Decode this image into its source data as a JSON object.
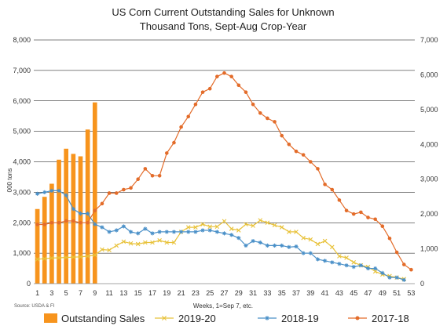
{
  "chart_data": {
    "type": "bar+line",
    "title": "US Corn Current Outstanding Sales for Unknown",
    "subtitle": "Thousand Tons, Sept-Aug Crop-Year",
    "ylabel": "000 tons",
    "xlabel": "Weeks, 1=Sep 7, etc.",
    "source": "Source: USDA & FI",
    "ylim_left": [
      0,
      8000
    ],
    "ylim_right": [
      0,
      7000
    ],
    "yticks_left": [
      "0",
      "1,000",
      "2,000",
      "3,000",
      "4,000",
      "5,000",
      "6,000",
      "7,000",
      "8,000"
    ],
    "yticks_right": [
      "0",
      "1,000",
      "2,000",
      "3,000",
      "4,000",
      "5,000",
      "6,000",
      "7,000"
    ],
    "x_ticks": [
      "1",
      "3",
      "5",
      "7",
      "9",
      "11",
      "13",
      "15",
      "17",
      "19",
      "21",
      "23",
      "25",
      "27",
      "29",
      "31",
      "33",
      "35",
      "37",
      "39",
      "41",
      "43",
      "45",
      "47",
      "49",
      "51",
      "53"
    ],
    "grid": true,
    "legend_position": "bottom",
    "bar_series": {
      "name": "Outstanding Sales",
      "color": "#f7941d",
      "axis": "left",
      "weeks": [
        1,
        2,
        3,
        4,
        5,
        6,
        7,
        8,
        9
      ],
      "values": [
        2450,
        2850,
        3280,
        4070,
        4430,
        4260,
        4180,
        5060,
        5950
      ]
    },
    "line_series": [
      {
        "name": "2019-20",
        "color": "#e8c23a",
        "marker": "x",
        "axis": "left",
        "weeks": [
          1,
          2,
          3,
          4,
          5,
          6,
          7,
          8,
          9,
          10,
          11,
          12,
          13,
          14,
          15,
          16,
          17,
          18,
          19,
          20,
          21,
          22,
          23,
          24,
          25,
          26,
          27,
          28,
          29,
          30,
          31,
          32,
          33,
          34,
          35,
          36,
          37,
          38,
          39,
          40,
          41,
          42,
          43,
          44,
          45,
          46,
          47,
          48,
          49,
          50,
          51,
          52
        ],
        "values": [
          800,
          820,
          840,
          850,
          860,
          870,
          880,
          900,
          940,
          1120,
          1100,
          1250,
          1380,
          1320,
          1300,
          1350,
          1350,
          1420,
          1350,
          1350,
          1700,
          1850,
          1850,
          1950,
          1870,
          1870,
          2050,
          1800,
          1750,
          1950,
          1900,
          2080,
          2000,
          1920,
          1850,
          1700,
          1700,
          1500,
          1450,
          1300,
          1400,
          1200,
          900,
          850,
          700,
          600,
          550,
          400,
          300,
          250,
          200,
          150
        ]
      },
      {
        "name": "2018-19",
        "color": "#4a90c8",
        "marker": "star",
        "axis": "left",
        "weeks": [
          1,
          2,
          3,
          4,
          5,
          6,
          7,
          8,
          9,
          10,
          11,
          12,
          13,
          14,
          15,
          16,
          17,
          18,
          19,
          20,
          21,
          22,
          23,
          24,
          25,
          26,
          27,
          28,
          29,
          30,
          31,
          32,
          33,
          34,
          35,
          36,
          37,
          38,
          39,
          40,
          41,
          42,
          43,
          44,
          45,
          46,
          47,
          48,
          49,
          50,
          51,
          52
        ],
        "values": [
          2950,
          3000,
          3050,
          3050,
          2900,
          2450,
          2300,
          2300,
          1950,
          1850,
          1700,
          1750,
          1880,
          1700,
          1650,
          1800,
          1650,
          1700,
          1700,
          1700,
          1700,
          1700,
          1700,
          1750,
          1750,
          1700,
          1650,
          1600,
          1500,
          1250,
          1400,
          1350,
          1250,
          1250,
          1250,
          1200,
          1220,
          1000,
          1000,
          800,
          750,
          700,
          650,
          600,
          550,
          600,
          500,
          500,
          350,
          200,
          200,
          120
        ]
      },
      {
        "name": "2017-18",
        "color": "#e36c2a",
        "marker": "circle",
        "axis": "right",
        "weeks": [
          1,
          2,
          3,
          4,
          5,
          6,
          7,
          8,
          9,
          10,
          11,
          12,
          13,
          14,
          15,
          16,
          17,
          18,
          19,
          20,
          21,
          22,
          23,
          24,
          25,
          26,
          27,
          28,
          29,
          30,
          31,
          32,
          33,
          34,
          35,
          36,
          37,
          38,
          39,
          40,
          41,
          42,
          43,
          44,
          45,
          46,
          47,
          48,
          49,
          50,
          51,
          52,
          53
        ],
        "values": [
          1700,
          1700,
          1750,
          1750,
          1800,
          1800,
          1750,
          1750,
          2100,
          2300,
          2600,
          2600,
          2700,
          2750,
          3000,
          3300,
          3100,
          3100,
          3750,
          4050,
          4500,
          4800,
          5150,
          5500,
          5600,
          5950,
          6050,
          5950,
          5700,
          5500,
          5150,
          4900,
          4750,
          4650,
          4250,
          4000,
          3800,
          3700,
          3500,
          3300,
          2850,
          2700,
          2400,
          2100,
          2000,
          2050,
          1900,
          1850,
          1650,
          1300,
          900,
          550,
          400
        ]
      }
    ]
  }
}
